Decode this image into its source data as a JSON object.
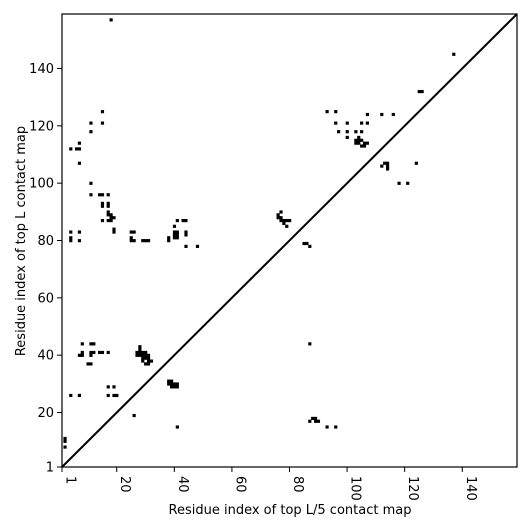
{
  "chart_data": {
    "type": "scatter",
    "title": "",
    "xlabel": "Residue index of top L/5 contact map",
    "ylabel": "Residue index of top L contact map",
    "xlim": [
      1,
      159
    ],
    "ylim": [
      1,
      159
    ],
    "xticks": [
      1,
      20,
      40,
      60,
      80,
      100,
      120,
      140
    ],
    "yticks": [
      1,
      20,
      40,
      60,
      80,
      100,
      120,
      140
    ],
    "xtick_labels": [
      "1",
      "20",
      "40",
      "60",
      "80",
      "100",
      "120",
      "140"
    ],
    "ytick_labels": [
      "1",
      "20",
      "40",
      "60",
      "80",
      "100",
      "120",
      "140"
    ],
    "grid": false,
    "diagonal": true,
    "marker_color": "#000000",
    "points": [
      [
        2,
        8
      ],
      [
        2,
        10
      ],
      [
        2,
        11
      ],
      [
        18,
        157
      ],
      [
        137,
        145
      ],
      [
        4,
        112
      ],
      [
        6,
        112
      ],
      [
        7,
        112
      ],
      [
        7,
        114
      ],
      [
        7,
        107
      ],
      [
        11,
        118
      ],
      [
        11,
        121
      ],
      [
        15,
        121
      ],
      [
        15,
        125
      ],
      [
        4,
        83
      ],
      [
        4,
        81
      ],
      [
        4,
        80
      ],
      [
        7,
        83
      ],
      [
        7,
        80
      ],
      [
        11,
        100
      ],
      [
        11,
        96
      ],
      [
        14,
        96
      ],
      [
        15,
        96
      ],
      [
        17,
        96
      ],
      [
        15,
        93
      ],
      [
        15,
        92
      ],
      [
        17,
        93
      ],
      [
        17,
        92
      ],
      [
        15,
        87
      ],
      [
        17,
        87
      ],
      [
        17,
        89
      ],
      [
        17,
        90
      ],
      [
        18,
        88
      ],
      [
        18,
        87
      ],
      [
        18,
        89
      ],
      [
        19,
        88
      ],
      [
        19,
        84
      ],
      [
        19,
        83
      ],
      [
        25,
        83
      ],
      [
        26,
        83
      ],
      [
        25,
        81
      ],
      [
        25,
        80
      ],
      [
        26,
        80
      ],
      [
        29,
        80
      ],
      [
        30,
        80
      ],
      [
        31,
        80
      ],
      [
        38,
        81
      ],
      [
        38,
        80
      ],
      [
        40,
        83
      ],
      [
        40,
        82
      ],
      [
        40,
        81
      ],
      [
        40,
        85
      ],
      [
        41,
        83
      ],
      [
        41,
        82
      ],
      [
        41,
        81
      ],
      [
        41,
        87
      ],
      [
        43,
        87
      ],
      [
        44,
        87
      ],
      [
        44,
        83
      ],
      [
        44,
        82
      ],
      [
        44,
        78
      ],
      [
        48,
        78
      ],
      [
        76,
        89
      ],
      [
        76,
        88
      ],
      [
        77,
        90
      ],
      [
        77,
        88
      ],
      [
        77,
        87
      ],
      [
        78,
        87
      ],
      [
        78,
        86
      ],
      [
        79,
        85
      ],
      [
        79,
        87
      ],
      [
        80,
        87
      ],
      [
        85,
        79
      ],
      [
        86,
        79
      ],
      [
        87,
        78
      ],
      [
        93,
        125
      ],
      [
        96,
        125
      ],
      [
        96,
        121
      ],
      [
        97,
        118
      ],
      [
        100,
        121
      ],
      [
        100,
        118
      ],
      [
        100,
        116
      ],
      [
        103,
        118
      ],
      [
        103,
        115
      ],
      [
        103,
        114
      ],
      [
        104,
        116
      ],
      [
        104,
        115
      ],
      [
        104,
        114
      ],
      [
        105,
        115
      ],
      [
        105,
        113
      ],
      [
        105,
        121
      ],
      [
        105,
        118
      ],
      [
        106,
        114
      ],
      [
        106,
        113
      ],
      [
        107,
        114
      ],
      [
        107,
        121
      ],
      [
        107,
        124
      ],
      [
        112,
        124
      ],
      [
        116,
        124
      ],
      [
        112,
        106
      ],
      [
        113,
        107
      ],
      [
        114,
        107
      ],
      [
        114,
        106
      ],
      [
        114,
        105
      ],
      [
        118,
        100
      ],
      [
        121,
        100
      ],
      [
        124,
        107
      ],
      [
        125,
        132
      ],
      [
        126,
        132
      ],
      [
        4,
        26
      ],
      [
        7,
        26
      ],
      [
        7,
        40
      ],
      [
        8,
        40
      ],
      [
        8,
        41
      ],
      [
        8,
        44
      ],
      [
        10,
        37
      ],
      [
        11,
        37
      ],
      [
        11,
        41
      ],
      [
        11,
        40
      ],
      [
        11,
        44
      ],
      [
        12,
        44
      ],
      [
        12,
        41
      ],
      [
        14,
        41
      ],
      [
        15,
        41
      ],
      [
        17,
        41
      ],
      [
        17,
        29
      ],
      [
        17,
        26
      ],
      [
        19,
        29
      ],
      [
        19,
        26
      ],
      [
        20,
        26
      ],
      [
        26,
        19
      ],
      [
        27,
        41
      ],
      [
        27,
        40
      ],
      [
        28,
        42
      ],
      [
        28,
        41
      ],
      [
        28,
        40
      ],
      [
        28,
        43
      ],
      [
        29,
        41
      ],
      [
        29,
        40
      ],
      [
        29,
        39
      ],
      [
        29,
        38
      ],
      [
        30,
        41
      ],
      [
        30,
        40
      ],
      [
        30,
        39
      ],
      [
        30,
        37
      ],
      [
        31,
        40
      ],
      [
        31,
        39
      ],
      [
        31,
        38
      ],
      [
        31,
        37
      ],
      [
        32,
        38
      ],
      [
        38,
        31
      ],
      [
        38,
        30
      ],
      [
        39,
        31
      ],
      [
        39,
        30
      ],
      [
        39,
        29
      ],
      [
        40,
        30
      ],
      [
        40,
        29
      ],
      [
        41,
        30
      ],
      [
        41,
        29
      ],
      [
        41,
        15
      ],
      [
        87,
        44
      ],
      [
        87,
        17
      ],
      [
        88,
        18
      ],
      [
        89,
        18
      ],
      [
        89,
        17
      ],
      [
        90,
        17
      ],
      [
        93,
        15
      ],
      [
        96,
        15
      ]
    ]
  }
}
